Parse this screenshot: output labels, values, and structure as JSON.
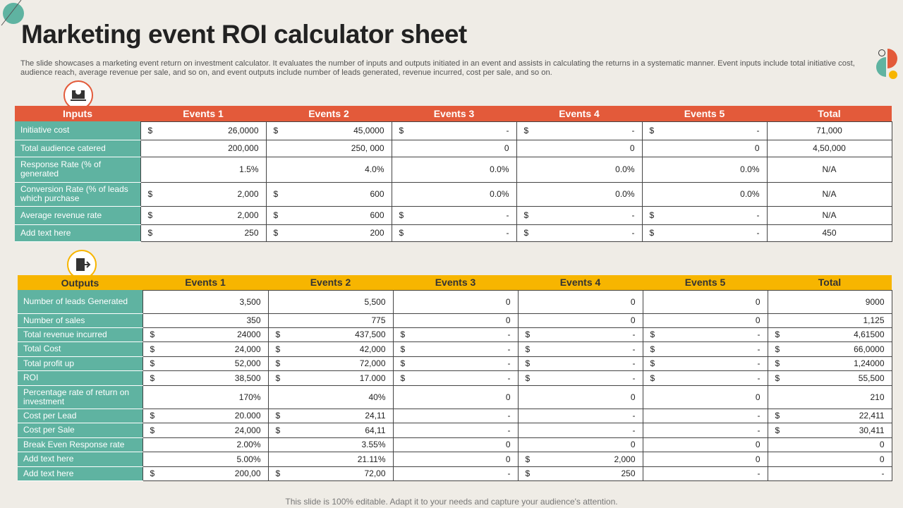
{
  "header": {
    "title": "Marketing event ROI calculator sheet",
    "description": "The slide showcases a marketing event return on investment calculator. It evaluates the number of inputs and outputs initiated in an event and assists in calculating the returns in a systematic manner. Event inputs include total initiative cost, audience reach, average revenue per sale, and so on, and event outputs include number of leads generated, revenue incurred, cost per sale, and so on."
  },
  "inputs_table": {
    "columns": [
      "Inputs",
      "Events 1",
      "Events 2",
      "Events 3",
      "Events 4",
      "Events 5",
      "Total"
    ],
    "rows": [
      {
        "label": "Initiative cost",
        "cells": [
          {
            "currency": "$",
            "amount": "26,0000"
          },
          {
            "currency": "$",
            "amount": "45,0000"
          },
          {
            "currency": "$",
            "amount": "-"
          },
          {
            "currency": "$",
            "amount": "-"
          },
          {
            "currency": "$",
            "amount": "-"
          },
          "71,000"
        ]
      },
      {
        "label": "Total audience catered",
        "cells": [
          "200,000",
          "250, 000",
          "0",
          "0",
          "0",
          "4,50,000"
        ]
      },
      {
        "label": "Response Rate (% of generated",
        "cells": [
          "1.5%",
          "4.0%",
          "0.0%",
          "0.0%",
          "0.0%",
          "N/A"
        ]
      },
      {
        "label": "Conversion Rate (% of leads which purchase",
        "cells": [
          {
            "currency": "$",
            "amount": "2,000"
          },
          {
            "currency": "$",
            "amount": "600"
          },
          "0.0%",
          "0.0%",
          "0.0%",
          "N/A"
        ]
      },
      {
        "label": "Average revenue rate",
        "cells": [
          {
            "currency": "$",
            "amount": "2,000"
          },
          {
            "currency": "$",
            "amount": "600"
          },
          {
            "currency": "$",
            "amount": "-"
          },
          {
            "currency": "$",
            "amount": "-"
          },
          {
            "currency": "$",
            "amount": "-"
          },
          "N/A"
        ]
      },
      {
        "label": "Add text here",
        "cells": [
          {
            "currency": "$",
            "amount": "250"
          },
          {
            "currency": "$",
            "amount": "200"
          },
          {
            "currency": "$",
            "amount": "-"
          },
          {
            "currency": "$",
            "amount": "-"
          },
          {
            "currency": "$",
            "amount": "-"
          },
          "450"
        ]
      }
    ]
  },
  "outputs_table": {
    "columns": [
      "Outputs",
      "Events 1",
      "Events 2",
      "Events 3",
      "Events 4",
      "Events 5",
      "Total"
    ],
    "rows": [
      {
        "label": "Number of leads Generated",
        "cells": [
          "3,500",
          "5,500",
          "0",
          "0",
          "0",
          "9000"
        ]
      },
      {
        "label": "Number of sales",
        "cells": [
          "350",
          "775",
          "0",
          "0",
          "0",
          "1,125"
        ]
      },
      {
        "label": "Total revenue incurred",
        "cells": [
          {
            "currency": "$",
            "amount": "24000"
          },
          {
            "currency": "$",
            "amount": "437,500"
          },
          {
            "currency": "$",
            "amount": "-"
          },
          {
            "currency": "$",
            "amount": "-"
          },
          {
            "currency": "$",
            "amount": "-"
          },
          {
            "currency": "$",
            "amount": "4,61500"
          }
        ]
      },
      {
        "label": "Total Cost",
        "cells": [
          {
            "currency": "$",
            "amount": "24,000"
          },
          {
            "currency": "$",
            "amount": "42,000"
          },
          {
            "currency": "$",
            "amount": "-"
          },
          {
            "currency": "$",
            "amount": "-"
          },
          {
            "currency": "$",
            "amount": "-"
          },
          {
            "currency": "$",
            "amount": "66,0000"
          }
        ]
      },
      {
        "label": "Total profit up",
        "cells": [
          {
            "currency": "$",
            "amount": "52,000"
          },
          {
            "currency": "$",
            "amount": "72,000"
          },
          {
            "currency": "$",
            "amount": "-"
          },
          {
            "currency": "$",
            "amount": "-"
          },
          {
            "currency": "$",
            "amount": "-"
          },
          {
            "currency": "$",
            "amount": "1,24000"
          }
        ]
      },
      {
        "label": "ROI",
        "cells": [
          {
            "currency": "$",
            "amount": "38,500"
          },
          {
            "currency": "$",
            "amount": "17.000"
          },
          {
            "currency": "$",
            "amount": "-"
          },
          {
            "currency": "$",
            "amount": "-"
          },
          {
            "currency": "$",
            "amount": "-"
          },
          {
            "currency": "$",
            "amount": "55,500"
          }
        ]
      },
      {
        "label": "Percentage rate of return on investment",
        "cells": [
          "170%",
          "40%",
          "0",
          "0",
          "0",
          "210"
        ]
      },
      {
        "label": "Cost per Lead",
        "cells": [
          {
            "currency": "$",
            "amount": "20.000"
          },
          {
            "currency": "$",
            "amount": "24,11"
          },
          "-",
          "-",
          "-",
          {
            "currency": "$",
            "amount": "22,411"
          }
        ]
      },
      {
        "label": "Cost per Sale",
        "cells": [
          {
            "currency": "$",
            "amount": "24,000"
          },
          {
            "currency": "$",
            "amount": "64,11"
          },
          "-",
          "-",
          "-",
          {
            "currency": "$",
            "amount": "30,411"
          }
        ]
      },
      {
        "label": "Break Even Response rate",
        "cells": [
          "2.00%",
          "3.55%",
          "0",
          "0",
          "0",
          "0"
        ]
      },
      {
        "label": "Add text here",
        "cells": [
          "5.00%",
          "21.11%",
          "0",
          {
            "currency": "$",
            "amount": "2,000"
          },
          "0",
          "0"
        ]
      },
      {
        "label": "Add text here",
        "cells": [
          {
            "currency": "$",
            "amount": "200,00"
          },
          {
            "currency": "$",
            "amount": "72,00"
          },
          "-",
          {
            "currency": "$",
            "amount": "250"
          },
          "-",
          "-"
        ]
      }
    ]
  },
  "footer": {
    "note": "This slide is 100% editable. Adapt it to your needs and capture your audience's attention."
  }
}
